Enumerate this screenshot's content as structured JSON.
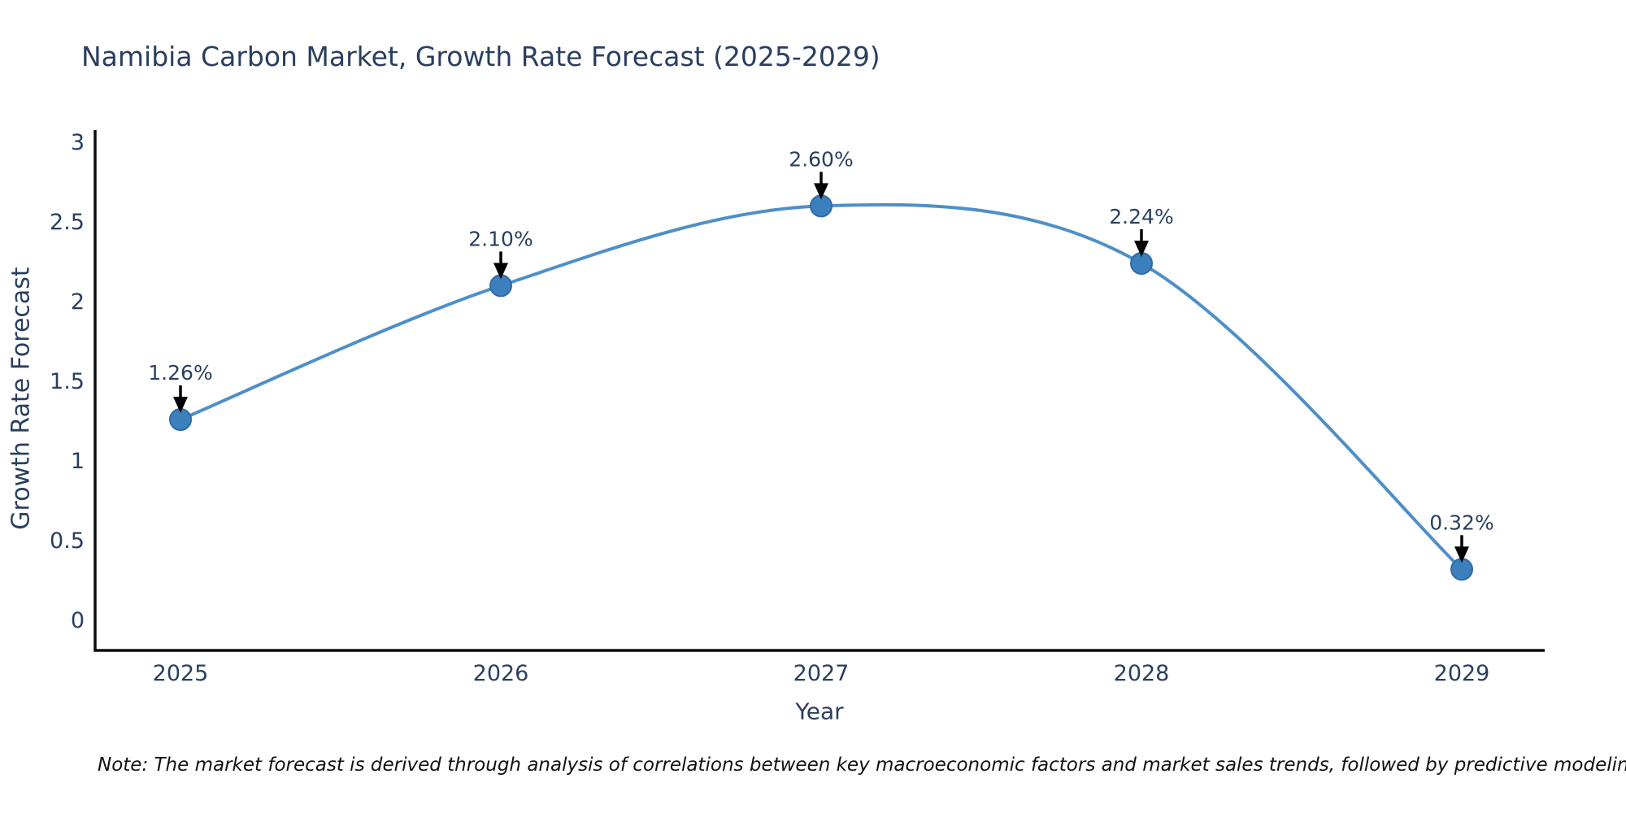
{
  "title": "Namibia Carbon Market, Growth Rate Forecast (2025-2029)",
  "note": "Note: The market forecast is derived through analysis of correlations between key macroeconomic factors and market sales trends, followed by predictive modeling to project future sales",
  "chart_data": {
    "type": "line",
    "title": "Namibia Carbon Market, Growth Rate Forecast (2025-2029)",
    "xlabel": "Year",
    "ylabel": "Growth Rate Forecast",
    "x": [
      2025,
      2026,
      2027,
      2028,
      2029
    ],
    "values": [
      1.26,
      2.1,
      2.6,
      2.24,
      0.32
    ],
    "point_labels": [
      "1.26%",
      "2.10%",
      "2.60%",
      "2.24%",
      "0.32%"
    ],
    "xtick_labels": [
      "2025",
      "2026",
      "2027",
      "2028",
      "2029"
    ],
    "yticks": [
      0,
      0.5,
      1,
      1.5,
      2,
      2.5,
      3
    ],
    "ytick_labels": [
      "0",
      "0.5",
      "1",
      "1.5",
      "2",
      "2.5",
      "3"
    ],
    "ylim": [
      0,
      3
    ],
    "grid": false,
    "legend": "none",
    "smooth": true,
    "colors": {
      "line": "#4e8fc7",
      "marker": "#3b80bd",
      "marker_edge": "#2f6ba8",
      "arrow": "#000000",
      "axis": "#0d0d0d",
      "text": "#2a3f5f"
    }
  }
}
